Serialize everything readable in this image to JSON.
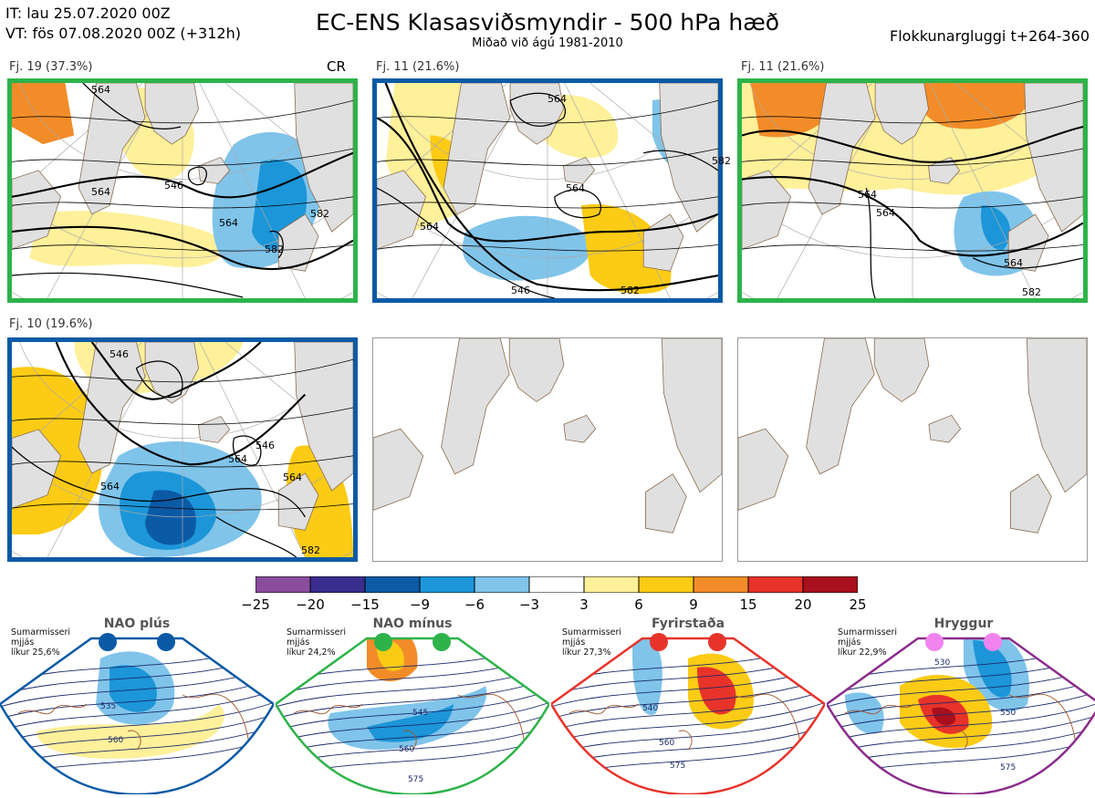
{
  "header": {
    "init_time": "IT: lau 25.07.2020 00Z",
    "valid_time": "VT: fös 07.08.2020 00Z  (+312h)",
    "title": "EC-ENS Klasasviðsmyndir - 500 hPa hæð",
    "subtitle": "Miðað við ágú 1981-2010",
    "window": "Flokkunargluggi t+264-360"
  },
  "panels": [
    {
      "label": "Fj. 19 (37.3%)",
      "tag": "CR",
      "frame_color": "#2db34a",
      "contours": [
        "564",
        "564",
        "546",
        "564",
        "582",
        "582"
      ]
    },
    {
      "label": "Fj. 11 (21.6%)",
      "tag": "",
      "frame_color": "#0b5aa6",
      "contours": [
        "564",
        "546",
        "564",
        "564",
        "582",
        "582"
      ]
    },
    {
      "label": "Fj. 11 (21.6%)",
      "tag": "",
      "frame_color": "#2db34a",
      "contours": [
        "564",
        "564",
        "564",
        "582"
      ]
    },
    {
      "label": "Fj. 10 (19.6%)",
      "tag": "",
      "frame_color": "#0b5aa6",
      "contours": [
        "546",
        "546",
        "564",
        "564",
        "564",
        "582"
      ]
    },
    {
      "label": "",
      "tag": "",
      "frame_color": "",
      "contours": []
    },
    {
      "label": "",
      "tag": "",
      "frame_color": "",
      "contours": []
    }
  ],
  "colorbar": {
    "colors": [
      "#8a4d9e",
      "#3a2c8c",
      "#0b5aa6",
      "#1c96d8",
      "#80c4ea",
      "#ffffff",
      "#fff09a",
      "#fbcb16",
      "#f28c28",
      "#e8332a",
      "#a90f1c"
    ],
    "ticks": [
      "−25",
      "−20",
      "−15",
      "−9",
      "−6",
      "−3",
      "3",
      "6",
      "9",
      "15",
      "20",
      "25"
    ]
  },
  "regimes": [
    {
      "name": "NAO plús",
      "color": "#0b5aa6",
      "dot_color": "#0b5aa6",
      "line1": "Sumarmisseri",
      "line2": "mjjás",
      "line3": "líkur 25,6%",
      "contours": [
        "535",
        "560"
      ]
    },
    {
      "name": "NAO mínus",
      "color": "#2db34a",
      "dot_color": "#2db34a",
      "line1": "Sumarmisseri",
      "line2": "mjjás",
      "line3": "líkur 24,2%",
      "contours": [
        "545",
        "560",
        "575"
      ]
    },
    {
      "name": "Fyrirstaða",
      "color": "#e8332a",
      "dot_color": "#e8332a",
      "line1": "Sumarmisseri",
      "line2": "mjjás",
      "line3": "líkur 27,3%",
      "contours": [
        "540",
        "560",
        "575"
      ]
    },
    {
      "name": "Hryggur",
      "color": "#8a2c8c",
      "dot_color": "#ef84ef",
      "line1": "Sumarmisseri",
      "line2": "mjjás",
      "line3": "líkur 22,9%",
      "contours": [
        "530",
        "550",
        "575"
      ]
    }
  ]
}
